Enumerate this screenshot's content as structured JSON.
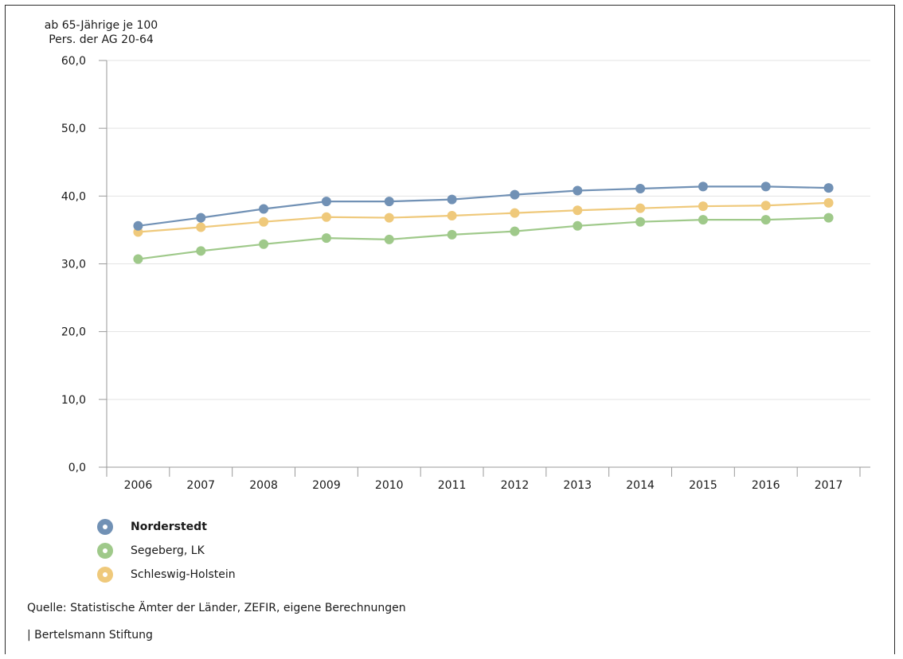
{
  "chart_data": {
    "type": "line",
    "ylabel": "ab 65-Jährige je 100\nPers. der AG 20-64",
    "ylim": [
      0,
      60
    ],
    "yticks": [
      "0,0",
      "10,0",
      "20,0",
      "30,0",
      "40,0",
      "50,0",
      "60,0"
    ],
    "categories": [
      "2006",
      "2007",
      "2008",
      "2009",
      "2010",
      "2011",
      "2012",
      "2013",
      "2014",
      "2015",
      "2016",
      "2017"
    ],
    "grid": true,
    "legend_position": "bottom-left",
    "series": [
      {
        "name": "Norderstedt",
        "color": "#7191b5",
        "bold": true,
        "values": [
          35.6,
          36.8,
          38.1,
          39.2,
          39.2,
          39.5,
          40.2,
          40.8,
          41.1,
          41.4,
          41.4,
          41.2
        ]
      },
      {
        "name": "Segeberg, LK",
        "color": "#9fc98a",
        "bold": false,
        "values": [
          30.7,
          31.9,
          32.9,
          33.8,
          33.6,
          34.3,
          34.8,
          35.6,
          36.2,
          36.5,
          36.5,
          36.8
        ]
      },
      {
        "name": "Schleswig-Holstein",
        "color": "#efc97b",
        "bold": false,
        "values": [
          34.7,
          35.4,
          36.2,
          36.9,
          36.8,
          37.1,
          37.5,
          37.9,
          38.2,
          38.5,
          38.6,
          39.0
        ]
      }
    ]
  },
  "footer": {
    "source": "Quelle: Statistische Ämter der Länder, ZEFIR, eigene Berechnungen",
    "credit": "| Bertelsmann Stiftung"
  }
}
